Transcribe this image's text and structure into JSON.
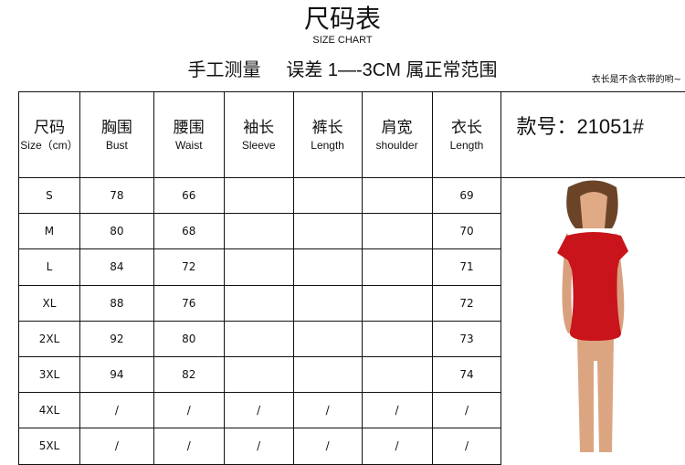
{
  "header": {
    "title": "尺码表",
    "title_en": "SIZE CHART",
    "subtitle": "手工测量     误差 1—-3CM 属正常范围",
    "note": "衣长是不含衣带的哟~"
  },
  "table": {
    "columns": [
      {
        "zh": "尺码",
        "en": "Size（cm）"
      },
      {
        "zh": "胸围",
        "en": "Bust"
      },
      {
        "zh": "腰围",
        "en": "Waist"
      },
      {
        "zh": "袖长",
        "en": "Sleeve"
      },
      {
        "zh": "裤长",
        "en": "Length"
      },
      {
        "zh": "肩宽",
        "en": "shoulder"
      },
      {
        "zh": "衣长",
        "en": "Length"
      }
    ],
    "model_code": "款号：21051#",
    "rows": [
      [
        "S",
        "78",
        "66",
        "",
        "",
        "",
        "69"
      ],
      [
        "M",
        "80",
        "68",
        "",
        "",
        "",
        "70"
      ],
      [
        "L",
        "84",
        "72",
        "",
        "",
        "",
        "71"
      ],
      [
        "XL",
        "88",
        "76",
        "",
        "",
        "",
        "72"
      ],
      [
        "2XL",
        "92",
        "80",
        "",
        "",
        "",
        "73"
      ],
      [
        "3XL",
        "94",
        "82",
        "",
        "",
        "",
        "74"
      ],
      [
        "4XL",
        "/",
        "/",
        "/",
        "/",
        "/",
        "/"
      ],
      [
        "5XL",
        "/",
        "/",
        "/",
        "/",
        "/",
        "/"
      ]
    ]
  },
  "colors": {
    "dress": "#c8141a",
    "border": "#111111"
  }
}
